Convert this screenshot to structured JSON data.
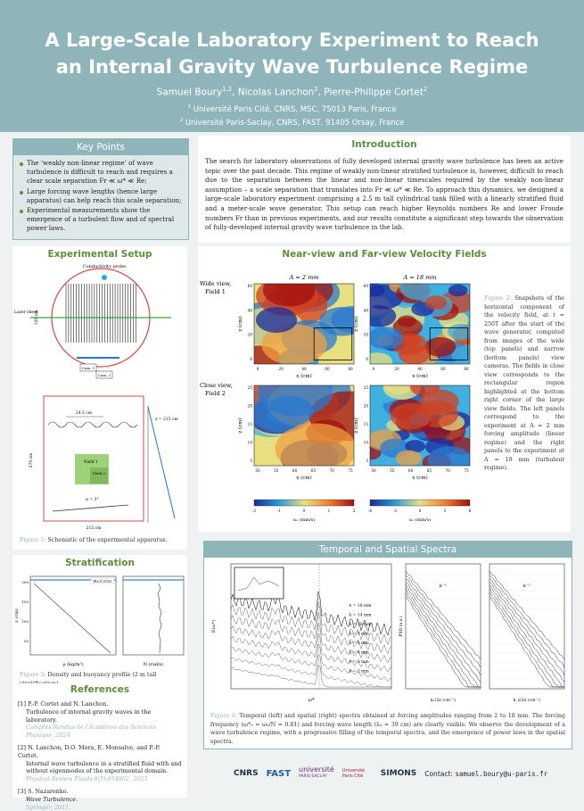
{
  "header": {
    "title_lines": [
      "A Large-Scale Laboratory Experiment to Reach",
      "an Internal Gravity Wave Turbulence Regime"
    ],
    "authors": [
      {
        "name": "Samuel Boury",
        "sup": "1,2",
        "sep": ","
      },
      {
        "name": "Nicolas Lanchon",
        "sup": "2",
        "sep": ","
      },
      {
        "name": "Pierre-Philippe Cortet",
        "sup": "2",
        "sep": ""
      }
    ],
    "affiliations": [
      {
        "sup": "1",
        "text": "Université Paris Cité, CNRS, MSC, 75013 Paris, France"
      },
      {
        "sup": "2",
        "text": "Université Paris-Saclay, CNRS, FAST, 91405 Orsay, France"
      }
    ]
  },
  "key_points": {
    "heading": "Key Points",
    "items": [
      "The ‘weakly non-linear regime’ of wave turbulence is difficult to reach and requires a clear scale separation Fr ≪ ω* ≪ Re;",
      "Large forcing wave lengths (hence large apparatus) can help reach this scale separation;",
      "Experimental measurements show the emergence of a turbulent flow and of spectral power laws."
    ]
  },
  "introduction": {
    "heading": "Introduction",
    "text": "The search for laboratory observations of fully developed internal gravity wave turbulence has been an active topic over the past decade. This regime of weakly non-linear stratified turbulence is, however, difficult to reach due to the separation between the linear and non-linear timescales required by the weakly non-linear assumption – a scale separation that translates into Fr ≪ ω* ≪ Re. To approach this dynamics, we designed a large-scale laboratory experiment comprising a 2.5 m tall cylindrical tank filled with a linearly stratified fluid and a meter-scale wave generator. This setup can reach higher Reynolds numbers Re and lower Froude numbers Fr than in previous experiments, and our results constitute a significant step towards the observation of fully-developed internal gravity wave turbulence in the lab."
  },
  "experimental_setup": {
    "heading": "Experimental Setup",
    "labels": {
      "probe": "Conductivity probe",
      "laser": "Laser sheet",
      "diam": "120 cm",
      "width": "24.5 cm",
      "height": "270 cm",
      "total": "215 cm",
      "field1": "Field 1",
      "field2": "Field 2",
      "cam1": "Cam. 1",
      "cam2": "Cam. 2",
      "z": "z = 215 cm",
      "alpha": "α = 3°"
    },
    "caption": {
      "label": "Figure 1:",
      "text": "Schematic of the experimental apparatus."
    }
  },
  "velocity_fields": {
    "heading": "Near-view and Far-view Velocity Fields",
    "columns": [
      "A = 2 mm",
      "A = 18 mm"
    ],
    "rows": [
      {
        "view": "Wide view,",
        "field": "Field 1"
      },
      {
        "view": "Close view,",
        "field": "Field 2"
      }
    ],
    "x_label": "x (cm)",
    "z_label": "z (cm)",
    "wide_xticks": [
      "0",
      "20",
      "40",
      "60",
      "80"
    ],
    "wide_zticks": [
      "60",
      "40",
      "20",
      "0"
    ],
    "close_xticks": [
      "50",
      "55",
      "60",
      "65",
      "70",
      "75"
    ],
    "close_zticks": [
      "25",
      "20",
      "15",
      "10",
      "5"
    ],
    "colorbars": [
      {
        "label": "uₓ (mm/s)",
        "ticks": [
          "-2",
          "-1",
          "0",
          "1",
          "2"
        ]
      },
      {
        "label": "uₓ (mm/s)",
        "ticks": [
          "-6",
          "-3",
          "0",
          "3",
          "6"
        ]
      }
    ],
    "caption": {
      "label": "Figure 2:",
      "text": "Snapshots of the horizontal component of the velocity field, at t = 250T after the start of the wave generator, computed from images of the wide (top panels) and narrow (bottom panels) view cameras. The fields in close view corresponds to the rectangular region highlighted at the bottom right corner of the large view fields. The left panels correspond to the experiment at A = 2 mm forcing amplitude (linear regime) and the right panels to the experiment at A = 18 mm (turbulent regime)."
    }
  },
  "stratification": {
    "heading": "Stratification",
    "legend": "Black (mm)",
    "y_label": "z (cm)",
    "yticks": [
      "200",
      "150",
      "100",
      "50"
    ],
    "rho_label": "ρ (kg/m³)",
    "n_label": "N (rad/s)",
    "caption": {
      "label": "Figure 3:",
      "text": "Density and buoyancy profile (2 m tall stratification)."
    }
  },
  "references": {
    "heading": "References",
    "items": [
      {
        "num": "[1]",
        "authors": "P.-P. Cortet and N. Lanchon.",
        "title": "Turbulence of internal gravity waves in the laboratory.",
        "venue": "Comptes Rendus de l'Académie des Sciences Physique, 2024"
      },
      {
        "num": "[2]",
        "authors": "N. Lanchon, D.O. Mora, E. Monsalve, and P.-P. Cortet.",
        "title": "Internal wave turbulence in a stratified fluid with and without eigenmodes of the experimental domain.",
        "venue": "Physical Review Fluids 8(5):054802, 2023"
      },
      {
        "num": "[3]",
        "authors": "S. Nazarenko.",
        "title": "Wave Turbulence.",
        "venue": "Springer, 2011."
      }
    ]
  },
  "spectra": {
    "heading": "Temporal and Spatial Spectra",
    "legend": [
      "A = 18 mm",
      "A = 14 mm",
      "A = 10 mm",
      "A = 8 mm",
      "A = 6 mm",
      "A = 4 mm",
      "A = 3 mm",
      "A = 2 mm"
    ],
    "x_label": "ω*",
    "y_label": "E(ω*)",
    "k_label": "kₓ/2π (cm⁻¹)",
    "kz_label": "k_z/2π (cm⁻¹)",
    "psd_label": "PSD (a.u.)",
    "power_laws": [
      "k⁻³",
      "k⁻²"
    ],
    "caption": {
      "label": "Figure 4:",
      "text": "Temporal (left) and spatial (right) spectra obtained at forcing amplitudes ranging from 2 to 18 mm. The forcing frequency (ω*₀ = ω₀/N = 0.81) and forcing wave length (λ₀ = 39 cm) are clearly visible. We observe the development of a wave turbulence regime, with a progressive filling of the temporal spectra, and the emergence of power laws in the spatial spectra."
    }
  },
  "footer": {
    "logos": [
      "CNRS",
      "FAST",
      "université",
      "PARIS-SACLAY",
      "Université Paris Cité",
      "SIMONS"
    ],
    "contact_label": "Contact:",
    "email": "samuel.boury@u-paris.fr"
  }
}
